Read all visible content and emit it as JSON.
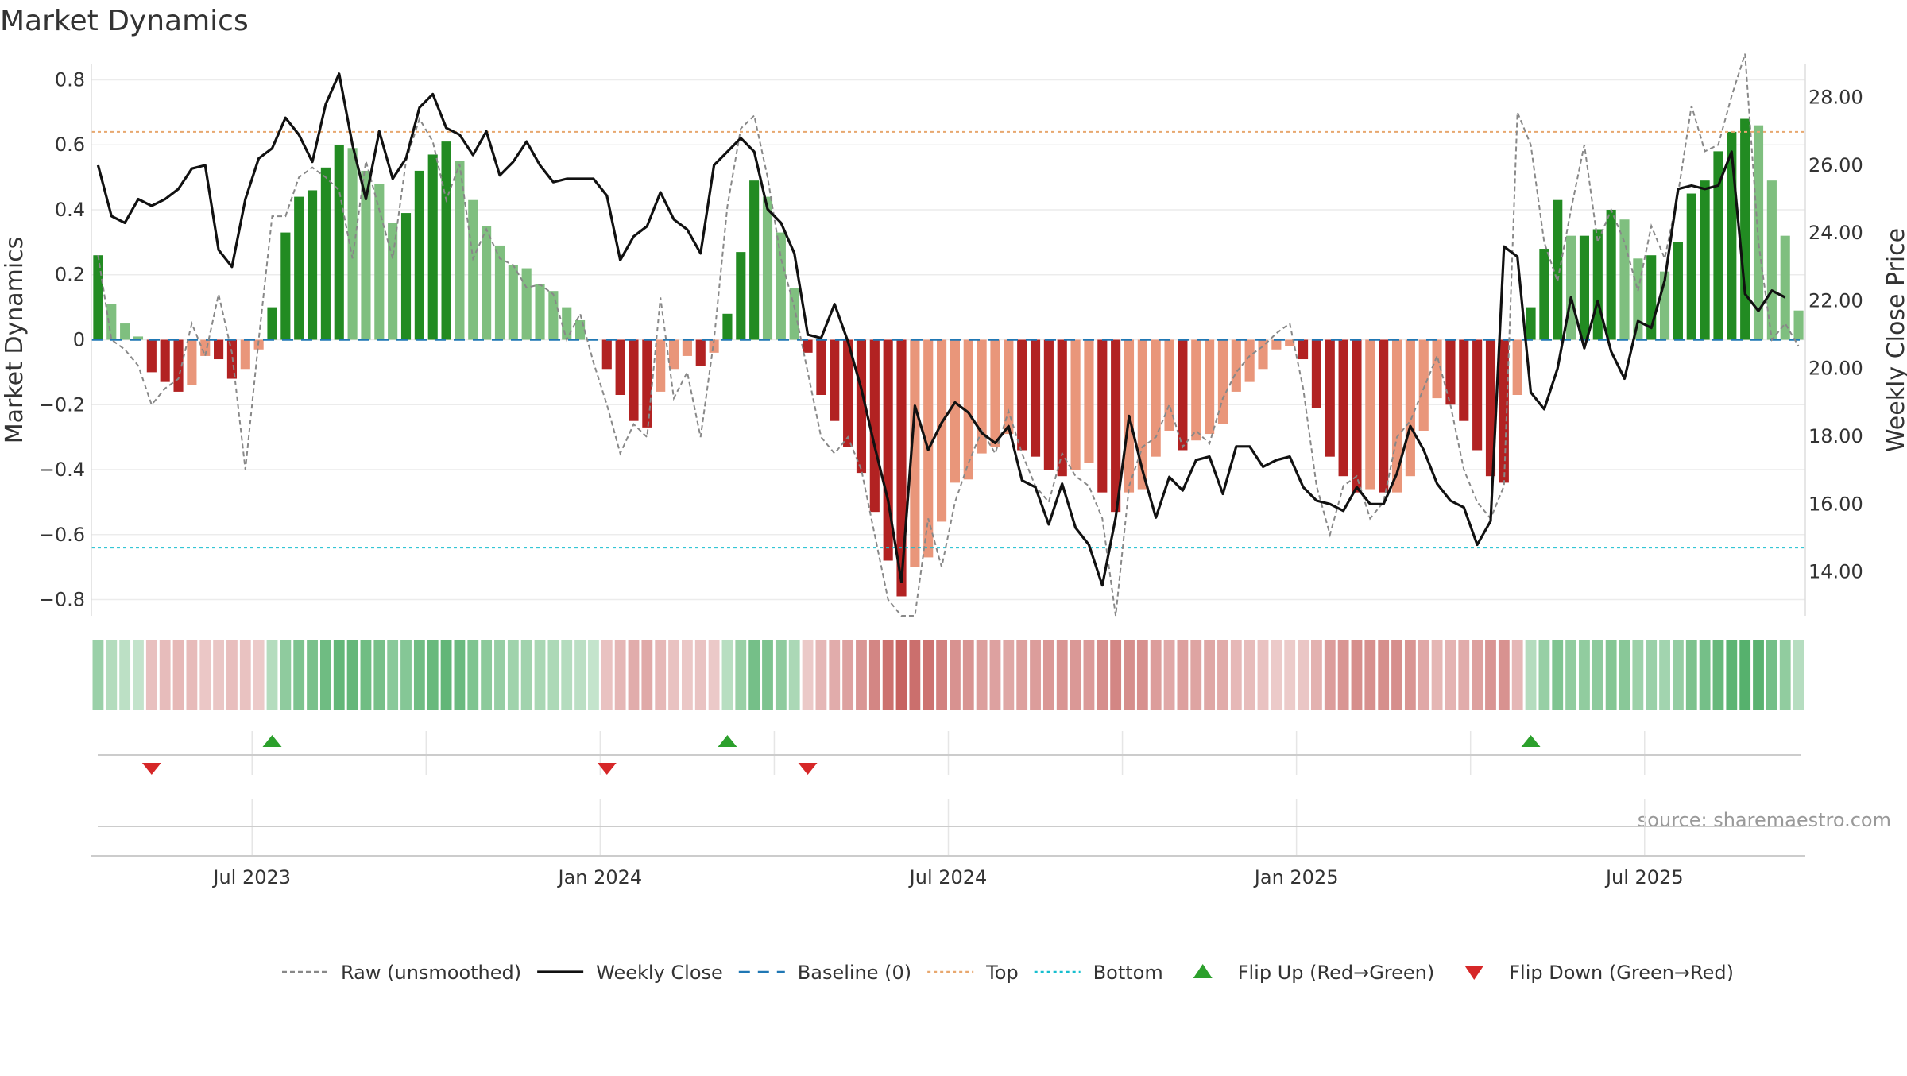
{
  "chart_data": {
    "type": "bar",
    "title": "Market Dynamics",
    "ylabel_left": "Market Dynamics",
    "ylabel_right": "Weekly Close Price",
    "source": "source: sharemaestro.com",
    "ylim_left": [
      -0.85,
      0.85
    ],
    "ylim_right": [
      12.7,
      29.0
    ],
    "yticks_left": [
      0.8,
      0.6,
      0.4,
      0.2,
      0,
      -0.2,
      -0.4,
      -0.6,
      -0.8
    ],
    "yticks_left_labels": [
      "0.8",
      "0.6",
      "0.4",
      "0.2",
      "0",
      "−0.2",
      "−0.4",
      "−0.6",
      "−0.8"
    ],
    "yticks_right": [
      28,
      26,
      24,
      22,
      20,
      18,
      16,
      14
    ],
    "yticks_right_labels": [
      "28.00",
      "26.00",
      "24.00",
      "22.00",
      "20.00",
      "18.00",
      "16.00",
      "14.00"
    ],
    "x_tick_labels": [
      "Jul 2023",
      "Jan 2024",
      "Jul 2024",
      "Jan 2025",
      "Jul 2025"
    ],
    "x_tick_week_index": [
      12,
      38,
      64,
      90,
      116
    ],
    "top_threshold": 0.64,
    "bottom_threshold": -0.64,
    "baseline": 0,
    "colors": {
      "strong_green": "#228B22",
      "light_green": "#7FBF7F",
      "strong_red": "#B22222",
      "light_red": "#E9967A",
      "top_line": "#E8A86F",
      "bottom_line": "#17BECF",
      "baseline": "#1F77B4",
      "raw_line": "#888888",
      "close_line": "#111111",
      "flip_up": "#2CA02C",
      "flip_down": "#D62728"
    },
    "series": [
      {
        "name": "Market Dynamics (smoothed)",
        "values": [
          0.26,
          0.11,
          0.05,
          0.01,
          -0.1,
          -0.13,
          -0.16,
          -0.14,
          -0.05,
          -0.06,
          -0.12,
          -0.09,
          -0.03,
          0.1,
          0.33,
          0.44,
          0.46,
          0.53,
          0.6,
          0.59,
          0.52,
          0.48,
          0.36,
          0.39,
          0.52,
          0.57,
          0.61,
          0.55,
          0.43,
          0.35,
          0.29,
          0.23,
          0.22,
          0.17,
          0.15,
          0.1,
          0.06,
          0.0,
          -0.09,
          -0.17,
          -0.25,
          -0.27,
          -0.16,
          -0.09,
          -0.05,
          -0.08,
          -0.04,
          0.08,
          0.27,
          0.49,
          0.44,
          0.33,
          0.16,
          -0.04,
          -0.17,
          -0.25,
          -0.33,
          -0.41,
          -0.53,
          -0.68,
          -0.79,
          -0.7,
          -0.67,
          -0.56,
          -0.44,
          -0.43,
          -0.35,
          -0.33,
          -0.29,
          -0.34,
          -0.36,
          -0.4,
          -0.42,
          -0.4,
          -0.38,
          -0.47,
          -0.53,
          -0.47,
          -0.46,
          -0.36,
          -0.28,
          -0.34,
          -0.31,
          -0.29,
          -0.26,
          -0.16,
          -0.13,
          -0.09,
          -0.03,
          -0.02,
          -0.06,
          -0.21,
          -0.36,
          -0.42,
          -0.47,
          -0.46,
          -0.47,
          -0.47,
          -0.42,
          -0.28,
          -0.18,
          -0.2,
          -0.25,
          -0.34,
          -0.42,
          -0.44,
          -0.17,
          0.1,
          0.28,
          0.43,
          0.32,
          0.32,
          0.34,
          0.4,
          0.37,
          0.25,
          0.26,
          0.21,
          0.3,
          0.45,
          0.49,
          0.58,
          0.64,
          0.68,
          0.66,
          0.49,
          0.32,
          0.09
        ]
      },
      {
        "name": "Raw (unsmoothed)",
        "values": [
          0.26,
          0.0,
          -0.03,
          -0.08,
          -0.2,
          -0.15,
          -0.12,
          0.05,
          -0.05,
          0.14,
          -0.04,
          -0.4,
          0.0,
          0.38,
          0.38,
          0.5,
          0.53,
          0.5,
          0.46,
          0.25,
          0.55,
          0.4,
          0.25,
          0.55,
          0.68,
          0.61,
          0.43,
          0.54,
          0.25,
          0.34,
          0.25,
          0.23,
          0.16,
          0.17,
          0.14,
          0.0,
          0.08,
          -0.07,
          -0.2,
          -0.35,
          -0.26,
          -0.3,
          0.13,
          -0.18,
          -0.1,
          -0.3,
          0.0,
          0.41,
          0.65,
          0.69,
          0.5,
          0.25,
          0.1,
          -0.1,
          -0.3,
          -0.35,
          -0.3,
          -0.4,
          -0.6,
          -0.8,
          -0.85,
          -0.85,
          -0.55,
          -0.7,
          -0.5,
          -0.38,
          -0.28,
          -0.35,
          -0.22,
          -0.35,
          -0.45,
          -0.5,
          -0.35,
          -0.42,
          -0.45,
          -0.55,
          -0.85,
          -0.45,
          -0.33,
          -0.3,
          -0.2,
          -0.33,
          -0.28,
          -0.32,
          -0.18,
          -0.1,
          -0.05,
          -0.02,
          0.02,
          0.05,
          -0.15,
          -0.45,
          -0.6,
          -0.45,
          -0.42,
          -0.55,
          -0.5,
          -0.3,
          -0.25,
          -0.15,
          -0.05,
          -0.2,
          -0.4,
          -0.5,
          -0.55,
          -0.45,
          0.7,
          0.6,
          0.3,
          0.18,
          0.4,
          0.6,
          0.3,
          0.4,
          0.3,
          0.15,
          0.35,
          0.25,
          0.45,
          0.72,
          0.58,
          0.6,
          0.75,
          0.88,
          0.3,
          0.0,
          0.05,
          -0.02
        ]
      },
      {
        "name": "Weekly Close",
        "values": [
          26.0,
          24.5,
          24.3,
          25.0,
          24.8,
          25.0,
          25.3,
          25.9,
          26.0,
          23.5,
          23.0,
          25.0,
          26.2,
          26.5,
          27.4,
          26.9,
          26.1,
          27.8,
          28.7,
          26.6,
          25.0,
          27.0,
          25.6,
          26.2,
          27.7,
          28.1,
          27.1,
          26.9,
          26.3,
          27.0,
          25.7,
          26.1,
          26.7,
          26.0,
          25.5,
          25.6,
          25.6,
          25.6,
          25.1,
          23.2,
          23.9,
          24.2,
          25.2,
          24.4,
          24.1,
          23.4,
          26.0,
          26.4,
          26.8,
          26.4,
          24.7,
          24.3,
          23.4,
          21.0,
          20.9,
          21.9,
          20.8,
          19.4,
          17.7,
          16.1,
          13.7,
          18.9,
          17.6,
          18.4,
          19.0,
          18.7,
          18.1,
          17.8,
          18.3,
          16.7,
          16.5,
          15.4,
          16.6,
          15.3,
          14.8,
          13.6,
          15.6,
          18.6,
          17.0,
          15.6,
          16.8,
          16.4,
          17.3,
          17.4,
          16.3,
          17.7,
          17.7,
          17.1,
          17.3,
          17.4,
          16.5,
          16.1,
          16.0,
          15.8,
          16.5,
          16.0,
          16.0,
          16.9,
          18.3,
          17.6,
          16.6,
          16.1,
          15.9,
          14.8,
          15.5,
          23.6,
          23.3,
          19.3,
          18.8,
          20.0,
          22.1,
          20.6,
          22.0,
          20.5,
          19.7,
          21.4,
          21.2,
          22.6,
          25.3,
          25.4,
          25.3,
          25.4,
          26.4,
          22.2,
          21.7,
          22.3,
          22.1
        ]
      }
    ],
    "flip_up_week_index": [
      13,
      47,
      107
    ],
    "flip_down_week_index": [
      4,
      38,
      53
    ],
    "legend": {
      "placement": "bottom",
      "items": [
        {
          "label": "Raw (unsmoothed)",
          "style": "dashed-line",
          "color": "#888888"
        },
        {
          "label": "Weekly Close",
          "style": "solid-line",
          "color": "#111111"
        },
        {
          "label": "Baseline (0)",
          "style": "dashed-line",
          "color": "#1F77B4"
        },
        {
          "label": "Top",
          "style": "dotted-line",
          "color": "#E8A86F"
        },
        {
          "label": "Bottom",
          "style": "dotted-line",
          "color": "#17BECF"
        },
        {
          "label": "Flip Up (Red→Green)",
          "style": "triangle-up",
          "color": "#2CA02C"
        },
        {
          "label": "Flip Down (Green→Red)",
          "style": "triangle-down",
          "color": "#D62728"
        }
      ]
    },
    "grid": true
  }
}
